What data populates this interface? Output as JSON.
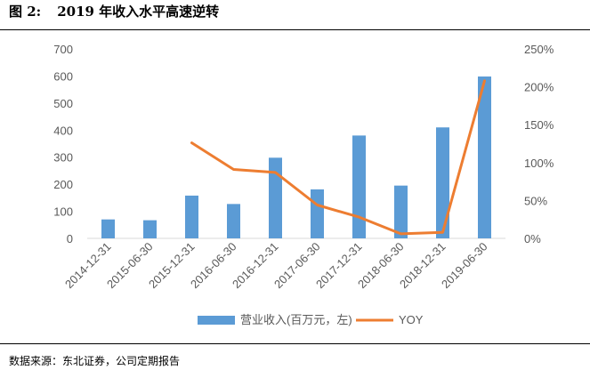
{
  "figure": {
    "label": "图 2:",
    "title": "2019 年收入水平高速逆转",
    "source": "数据来源：东北证券，公司定期报告"
  },
  "chart_data": {
    "type": "bar",
    "categories": [
      "2014-12-31",
      "2015-06-30",
      "2015-12-31",
      "2016-06-30",
      "2016-12-31",
      "2017-06-30",
      "2017-12-31",
      "2018-06-30",
      "2018-12-31",
      "2019-06-30"
    ],
    "series": [
      {
        "name": "营业收入(百万元，左)",
        "type": "bar",
        "axis": "left",
        "color": "#5B9BD5",
        "values": [
          70,
          67,
          158,
          127,
          298,
          181,
          380,
          195,
          410,
          598
        ]
      },
      {
        "name": "YOY",
        "type": "line",
        "axis": "right",
        "color": "#ED7D31",
        "values": [
          null,
          null,
          1.26,
          0.91,
          0.87,
          0.44,
          0.28,
          0.06,
          0.08,
          2.08
        ]
      }
    ],
    "y_left": {
      "min": 0,
      "max": 700,
      "ticks": [
        "0",
        "100",
        "200",
        "300",
        "400",
        "500",
        "600",
        "700"
      ]
    },
    "y_right": {
      "min": 0,
      "max": 2.5,
      "ticks": [
        "0%",
        "50%",
        "100%",
        "150%",
        "200%",
        "250%"
      ]
    },
    "legend": [
      "营业收入(百万元，左)",
      "YOY"
    ],
    "grid": false
  }
}
